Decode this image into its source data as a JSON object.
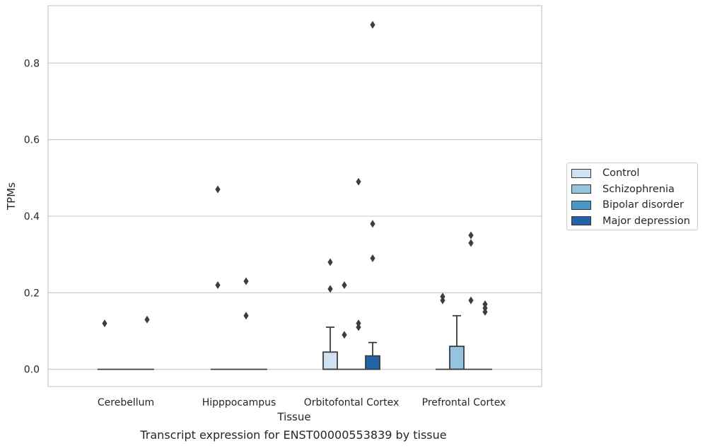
{
  "chart_data": {
    "type": "box",
    "xlabel": "Tissue",
    "ylabel": "TPMs",
    "caption": "Transcript expression for ENST00000553839 by tissue",
    "ylim": [
      -0.045,
      0.95
    ],
    "yticks": [
      0.0,
      0.2,
      0.4,
      0.6,
      0.8
    ],
    "ytick_labels": [
      "0.0",
      "0.2",
      "0.4",
      "0.6",
      "0.8"
    ],
    "grid": "horizontal",
    "legend_position": "right",
    "categories": [
      "Cerebellum",
      "Hipppocampus",
      "Orbitofontal Cortex",
      "Prefrontal Cortex"
    ],
    "series": [
      {
        "name": "Control",
        "color": "#d0e1f2",
        "boxes": [
          {
            "q1": 0,
            "median": 0,
            "q3": 0,
            "whisker_low": 0,
            "whisker_high": 0,
            "outliers": [
              0.12
            ]
          },
          {
            "q1": 0,
            "median": 0,
            "q3": 0,
            "whisker_low": 0,
            "whisker_high": 0,
            "outliers": [
              0.47,
              0.22
            ]
          },
          {
            "q1": 0,
            "median": 0,
            "q3": 0.045,
            "whisker_low": 0,
            "whisker_high": 0.11,
            "outliers": [
              0.28,
              0.21
            ]
          },
          {
            "q1": 0,
            "median": 0,
            "q3": 0,
            "whisker_low": 0,
            "whisker_high": 0,
            "outliers": [
              0.19,
              0.18
            ]
          }
        ]
      },
      {
        "name": "Schizophrenia",
        "color": "#94c4df",
        "boxes": [
          {
            "q1": 0,
            "median": 0,
            "q3": 0,
            "whisker_low": 0,
            "whisker_high": 0,
            "outliers": []
          },
          {
            "q1": 0,
            "median": 0,
            "q3": 0,
            "whisker_low": 0,
            "whisker_high": 0,
            "outliers": []
          },
          {
            "q1": 0,
            "median": 0,
            "q3": 0,
            "whisker_low": 0,
            "whisker_high": 0,
            "outliers": [
              0.22,
              0.09
            ]
          },
          {
            "q1": 0,
            "median": 0,
            "q3": 0.06,
            "whisker_low": 0,
            "whisker_high": 0.14,
            "outliers": []
          }
        ]
      },
      {
        "name": "Bipolar disorder",
        "color": "#4a98c9",
        "boxes": [
          {
            "q1": 0,
            "median": 0,
            "q3": 0,
            "whisker_low": 0,
            "whisker_high": 0,
            "outliers": []
          },
          {
            "q1": 0,
            "median": 0,
            "q3": 0,
            "whisker_low": 0,
            "whisker_high": 0,
            "outliers": [
              0.23,
              0.14
            ]
          },
          {
            "q1": 0,
            "median": 0,
            "q3": 0,
            "whisker_low": 0,
            "whisker_high": 0,
            "outliers": [
              0.49,
              0.12,
              0.11
            ]
          },
          {
            "q1": 0,
            "median": 0,
            "q3": 0,
            "whisker_low": 0,
            "whisker_high": 0,
            "outliers": [
              0.35,
              0.33,
              0.18
            ]
          }
        ]
      },
      {
        "name": "Major depression",
        "color": "#2264a8",
        "boxes": [
          {
            "q1": 0,
            "median": 0,
            "q3": 0,
            "whisker_low": 0,
            "whisker_high": 0,
            "outliers": [
              0.13
            ]
          },
          {
            "q1": 0,
            "median": 0,
            "q3": 0,
            "whisker_low": 0,
            "whisker_high": 0,
            "outliers": []
          },
          {
            "q1": 0,
            "median": 0,
            "q3": 0.035,
            "whisker_low": 0,
            "whisker_high": 0.07,
            "outliers": [
              0.9,
              0.38,
              0.29
            ]
          },
          {
            "q1": 0,
            "median": 0,
            "q3": 0,
            "whisker_low": 0,
            "whisker_high": 0,
            "outliers": [
              0.17,
              0.16,
              0.15
            ]
          }
        ]
      }
    ]
  }
}
